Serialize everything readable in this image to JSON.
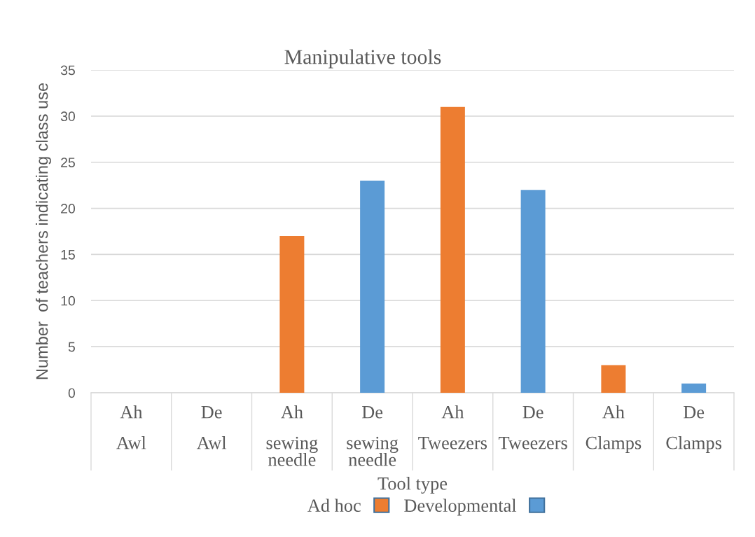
{
  "chart_data": {
    "type": "bar",
    "title": "Manipulative tools",
    "xlabel": "Tool type",
    "ylabel": "Number  of teachers indicating class use",
    "categories": [
      "Ah\nAwl",
      "De\nAwl",
      "Ah\nsewing needle",
      "De\nsewing needle",
      "Ah\nTweezers",
      "De\nTweezers",
      "Ah\nClamps",
      "De\nClamps"
    ],
    "series": [
      {
        "name": "Ad hoc",
        "color": "#ed7d31",
        "values": [
          0,
          null,
          17,
          null,
          31,
          null,
          3,
          null
        ]
      },
      {
        "name": "Developmental",
        "color": "#5b9bd5",
        "values": [
          null,
          0,
          null,
          23,
          null,
          22,
          null,
          1
        ]
      }
    ],
    "ylim": [
      0,
      35
    ],
    "yticks": [
      0,
      5,
      10,
      15,
      20,
      25,
      30,
      35
    ],
    "grid": "y",
    "legend": "bottom"
  }
}
